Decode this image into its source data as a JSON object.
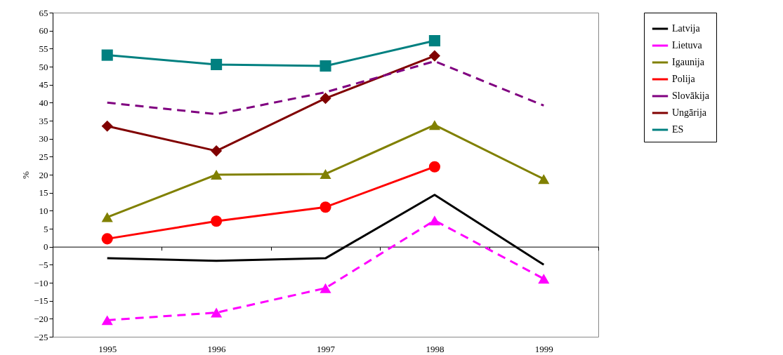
{
  "chart_data": {
    "type": "line",
    "ylabel": "%",
    "categories": [
      "1995",
      "1996",
      "1997",
      "1998",
      "1999"
    ],
    "ylim": [
      -25,
      65
    ],
    "yticks": [
      -25,
      -20,
      -15,
      -10,
      -5,
      0,
      5,
      10,
      15,
      20,
      25,
      30,
      35,
      40,
      45,
      50,
      55,
      60,
      65
    ],
    "legend": "right",
    "series": [
      {
        "name": "Latvija",
        "color": "#000000",
        "marker": "none",
        "line_style": "solid",
        "values": [
          -3.2,
          -3.9,
          -3.2,
          14.4,
          -5
        ]
      },
      {
        "name": "Lietuva",
        "color": "#ff00ff",
        "marker": "triangle",
        "line_style": "dashed",
        "values": [
          -20.4,
          -18.3,
          -11.5,
          7.3,
          -8.9
        ]
      },
      {
        "name": "Igaunija",
        "color": "#808000",
        "marker": "triangle",
        "line_style": "solid",
        "values": [
          8.2,
          20,
          20.2,
          33.8,
          18.8
        ]
      },
      {
        "name": "Polija",
        "color": "#ff0000",
        "marker": "circle",
        "line_style": "solid",
        "values": [
          2.2,
          7.1,
          11,
          22.2,
          null
        ]
      },
      {
        "name": "Slovākija",
        "color": "#800080",
        "marker": "none",
        "line_style": "dashed",
        "values": [
          40,
          36.8,
          42.9,
          51.5,
          39.2
        ]
      },
      {
        "name": "Ungārija",
        "color": "#800000",
        "marker": "diamond",
        "line_style": "solid",
        "values": [
          33.5,
          26.6,
          41.2,
          53,
          null
        ]
      },
      {
        "name": "ES",
        "color": "#008080",
        "marker": "square",
        "line_style": "solid",
        "values": [
          53.2,
          50.6,
          50.2,
          57.2,
          null
        ]
      }
    ]
  }
}
